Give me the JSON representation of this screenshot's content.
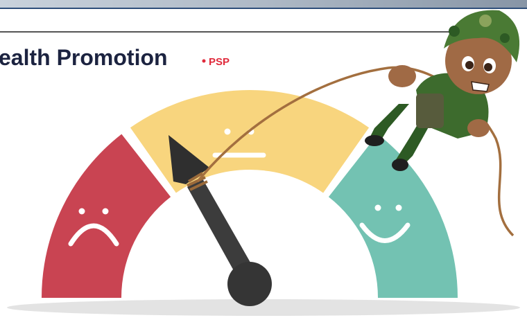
{
  "header": {
    "title": "ealth Promotion",
    "tag": "PSP"
  }
}
